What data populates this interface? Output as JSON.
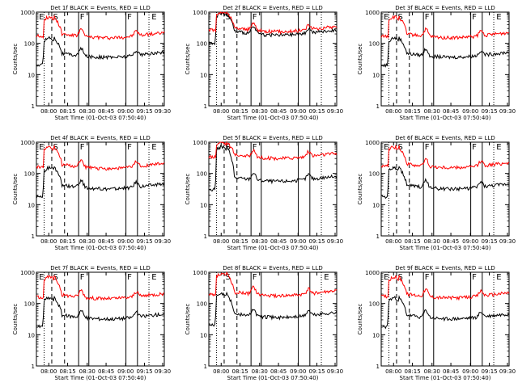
{
  "colors": {
    "background": "#ffffff",
    "events": "#000000",
    "lld": "#ff0000"
  },
  "chart_data": [
    {
      "type": "line",
      "title": "Det 1f BLACK = Events, RED = LLD",
      "xlabel": "Start Time (01-Oct-03 07:50:40)",
      "ylabel": "Counts/sec",
      "yscale": "log",
      "ylim": [
        1,
        1000
      ],
      "x_ticks": [
        "08:00",
        "08:15",
        "08:30",
        "08:45",
        "09:00",
        "09:15",
        "09:30"
      ],
      "y_ticks": [
        "1",
        "10",
        "100",
        "1000"
      ],
      "interval_labels": [
        "E",
        "S",
        "F",
        "F",
        "E"
      ],
      "series": [
        {
          "name": "Events",
          "color": "#000000",
          "level": 45,
          "peak": 150
        },
        {
          "name": "LLD",
          "color": "#ff0000",
          "level": 190,
          "peak": 700
        }
      ]
    },
    {
      "type": "line",
      "title": "Det 2f BLACK = Events, RED = LLD",
      "xlabel": "Start Time (01-Oct-03 07:50:40)",
      "ylabel": "Counts/sec",
      "yscale": "log",
      "ylim": [
        1,
        1000
      ],
      "x_ticks": [
        "08:00",
        "08:15",
        "08:30",
        "08:45",
        "09:00",
        "09:15",
        "09:30"
      ],
      "y_ticks": [
        "1",
        "10",
        "100",
        "1000"
      ],
      "interval_labels": [
        "S",
        "F"
      ],
      "series": [
        {
          "name": "Events",
          "color": "#000000",
          "level": 230,
          "peak": 900
        },
        {
          "name": "LLD",
          "color": "#ff0000",
          "level": 300,
          "peak": 1000
        }
      ]
    },
    {
      "type": "line",
      "title": "Det 3f BLACK = Events, RED = LLD",
      "xlabel": "Start Time (01-Oct-03 07:50:40)",
      "ylabel": "Counts/sec",
      "yscale": "log",
      "ylim": [
        1,
        1000
      ],
      "x_ticks": [
        "08:00",
        "08:15",
        "08:30",
        "08:45",
        "09:00",
        "09:15",
        "09:30"
      ],
      "y_ticks": [
        "1",
        "10",
        "100",
        "1000"
      ],
      "interval_labels": [
        "E",
        "S",
        "F",
        "F",
        "E"
      ],
      "series": [
        {
          "name": "Events",
          "color": "#000000",
          "level": 45,
          "peak": 150
        },
        {
          "name": "LLD",
          "color": "#ff0000",
          "level": 190,
          "peak": 700
        }
      ]
    },
    {
      "type": "line",
      "title": "Det 4f BLACK = Events, RED = LLD",
      "xlabel": "Start Time (01-Oct-03 07:50:40)",
      "ylabel": "Counts/sec",
      "yscale": "log",
      "ylim": [
        1,
        1000
      ],
      "x_ticks": [
        "08:00",
        "08:15",
        "08:30",
        "08:45",
        "09:00",
        "09:15",
        "09:30"
      ],
      "y_ticks": [
        "1",
        "10",
        "100",
        "1000"
      ],
      "interval_labels": [
        "E",
        "S",
        "F",
        "F",
        "E"
      ],
      "series": [
        {
          "name": "Events",
          "color": "#000000",
          "level": 40,
          "peak": 150
        },
        {
          "name": "LLD",
          "color": "#ff0000",
          "level": 180,
          "peak": 700
        }
      ]
    },
    {
      "type": "line",
      "title": "Det 5f BLACK = Events, RED = LLD",
      "xlabel": "Start Time (01-Oct-03 07:50:40)",
      "ylabel": "Counts/sec",
      "yscale": "log",
      "ylim": [
        1,
        1000
      ],
      "x_ticks": [
        "08:00",
        "08:15",
        "08:30",
        "08:45",
        "09:00",
        "09:15",
        "09:30"
      ],
      "y_ticks": [
        "1",
        "10",
        "100",
        "1000"
      ],
      "interval_labels": [
        "S",
        "F"
      ],
      "series": [
        {
          "name": "Events",
          "color": "#000000",
          "level": 70,
          "peak": 700
        },
        {
          "name": "LLD",
          "color": "#ff0000",
          "level": 380,
          "peak": 1000
        }
      ]
    },
    {
      "type": "line",
      "title": "Det 6f BLACK = Events, RED = LLD",
      "xlabel": "Start Time (01-Oct-03 07:50:40)",
      "ylabel": "Counts/sec",
      "yscale": "log",
      "ylim": [
        1,
        1000
      ],
      "x_ticks": [
        "08:00",
        "08:15",
        "08:30",
        "08:45",
        "09:00",
        "09:15",
        "09:30"
      ],
      "y_ticks": [
        "1",
        "10",
        "100",
        "1000"
      ],
      "interval_labels": [
        "E",
        "S",
        "F",
        "F",
        "E"
      ],
      "series": [
        {
          "name": "Events",
          "color": "#000000",
          "level": 40,
          "peak": 150
        },
        {
          "name": "LLD",
          "color": "#ff0000",
          "level": 190,
          "peak": 700
        }
      ]
    },
    {
      "type": "line",
      "title": "Det 7f BLACK = Events, RED = LLD",
      "xlabel": "Start Time (01-Oct-03 07:50:40)",
      "ylabel": "Counts/sec",
      "yscale": "log",
      "ylim": [
        1,
        1000
      ],
      "x_ticks": [
        "08:00",
        "08:15",
        "08:30",
        "08:45",
        "09:00",
        "09:15",
        "09:30"
      ],
      "y_ticks": [
        "1",
        "10",
        "100",
        "1000"
      ],
      "interval_labels": [
        "E",
        "S",
        "F",
        "F",
        "E"
      ],
      "series": [
        {
          "name": "Events",
          "color": "#000000",
          "level": 40,
          "peak": 150
        },
        {
          "name": "LLD",
          "color": "#ff0000",
          "level": 180,
          "peak": 700
        }
      ]
    },
    {
      "type": "line",
      "title": "Det 8f BLACK = Events, RED = LLD",
      "xlabel": "Start Time (01-Oct-03 07:50:40)",
      "ylabel": "Counts/sec",
      "yscale": "log",
      "ylim": [
        1,
        1000
      ],
      "x_ticks": [
        "08:00",
        "08:15",
        "08:30",
        "08:45",
        "09:00",
        "09:15",
        "09:30"
      ],
      "y_ticks": [
        "1",
        "10",
        "100",
        "1000"
      ],
      "interval_labels": [
        "S",
        "F",
        "E"
      ],
      "series": [
        {
          "name": "Events",
          "color": "#000000",
          "level": 45,
          "peak": 200
        },
        {
          "name": "LLD",
          "color": "#ff0000",
          "level": 220,
          "peak": 900
        }
      ]
    },
    {
      "type": "line",
      "title": "Det 9f BLACK = Events, RED = LLD",
      "xlabel": "Start Time (01-Oct-03 07:50:40)",
      "ylabel": "Counts/sec",
      "yscale": "log",
      "ylim": [
        1,
        1000
      ],
      "x_ticks": [
        "08:00",
        "08:15",
        "08:30",
        "08:45",
        "09:00",
        "09:15",
        "09:30"
      ],
      "y_ticks": [
        "1",
        "10",
        "100",
        "1000"
      ],
      "interval_labels": [
        "E",
        "S",
        "F",
        "F",
        "E"
      ],
      "series": [
        {
          "name": "Events",
          "color": "#000000",
          "level": 40,
          "peak": 150
        },
        {
          "name": "LLD",
          "color": "#ff0000",
          "level": 190,
          "peak": 700
        }
      ]
    }
  ]
}
